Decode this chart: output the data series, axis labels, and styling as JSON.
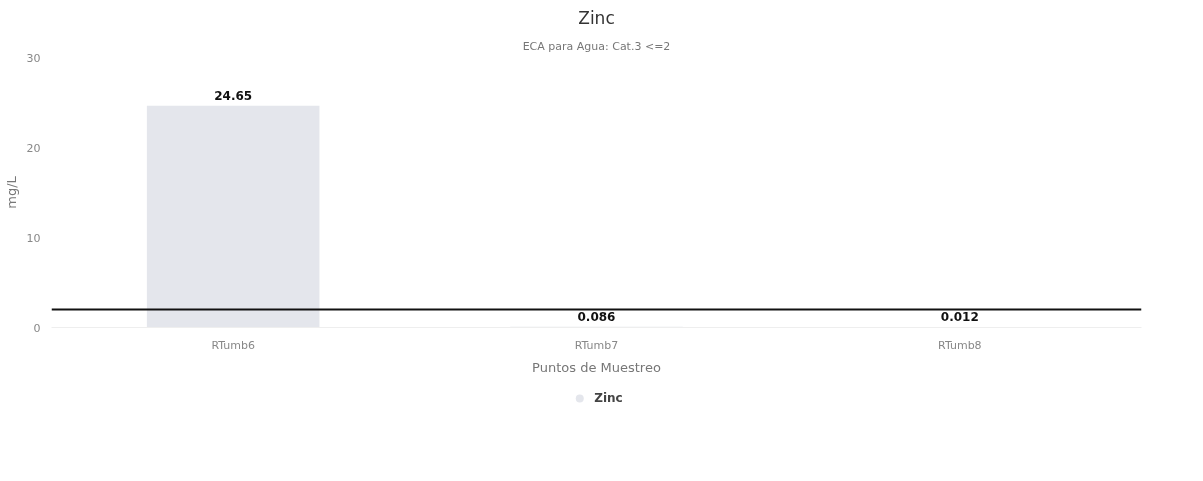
{
  "chart_data": {
    "type": "bar",
    "title": "Zinc",
    "subtitle": "ECA para Agua: Cat.3 <=2",
    "xlabel": "Puntos de Muestreo",
    "ylabel": "mg/L",
    "categories": [
      "RTumb6",
      "RTumb7",
      "RTumb8"
    ],
    "series": [
      {
        "name": "Zinc",
        "color": "#e4e6ec",
        "values": [
          24.65,
          0.086,
          0.012
        ]
      }
    ],
    "ylim": [
      0,
      30
    ],
    "yticks": [
      0,
      10,
      20,
      30
    ],
    "ref_lines": [
      {
        "axis": "y",
        "value": 2,
        "color": "#111111"
      }
    ],
    "data_labels": true,
    "legend": "bottom",
    "grid": false
  }
}
